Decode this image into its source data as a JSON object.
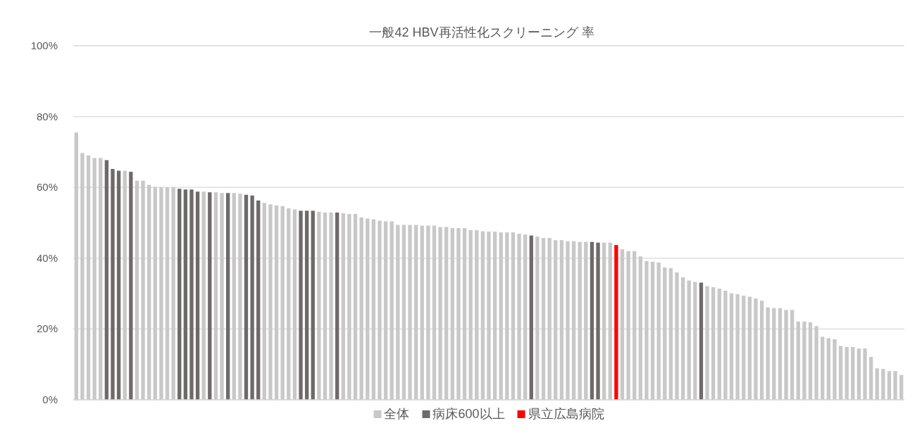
{
  "chart_data": {
    "type": "bar",
    "title": "一般42 HBV再活性化スクリーニング 率",
    "categories": [
      null,
      null,
      null,
      null,
      null,
      null,
      null,
      null,
      null,
      null,
      null,
      null,
      null,
      null,
      null,
      null,
      null,
      null,
      null,
      null,
      null,
      null,
      null,
      null,
      null,
      null,
      null,
      null,
      null,
      null,
      null,
      null,
      null,
      null,
      null,
      null,
      null,
      null,
      null,
      null,
      null,
      null,
      null,
      null,
      null,
      null,
      null,
      null,
      null,
      null,
      null,
      null,
      null,
      null,
      null,
      null,
      null,
      null,
      null,
      null,
      null,
      null,
      null,
      null,
      null,
      null,
      null,
      null,
      null,
      null,
      null,
      null,
      null,
      null,
      null,
      null,
      null,
      null,
      null,
      null,
      null,
      null,
      null,
      null,
      null,
      null,
      null,
      null,
      null,
      null,
      null,
      null,
      null,
      null,
      null,
      null,
      null,
      null,
      null,
      null,
      null,
      null,
      null,
      null,
      null,
      null,
      null,
      null,
      null,
      null,
      null,
      null,
      null,
      null,
      null,
      null,
      null,
      null,
      null,
      null,
      null,
      null,
      null,
      null,
      null,
      null,
      null,
      null,
      null,
      null,
      null,
      null,
      null,
      null,
      null,
      null,
      null
    ],
    "series": [
      {
        "name": "全体",
        "color": "#c8c8c8",
        "values": [
          75.5,
          69.7,
          69.0,
          68.3,
          68.3,
          null,
          null,
          null,
          64.7,
          null,
          61.9,
          61.9,
          60.7,
          60.1,
          60.0,
          60.0,
          60.0,
          null,
          null,
          null,
          null,
          58.8,
          null,
          58.6,
          58.4,
          null,
          58.4,
          58.2,
          null,
          null,
          null,
          55.6,
          55.2,
          54.9,
          54.7,
          54.1,
          53.8,
          null,
          null,
          null,
          53.1,
          52.9,
          52.9,
          null,
          52.7,
          52.5,
          52.5,
          51.5,
          51.2,
          51.0,
          50.6,
          50.4,
          50.4,
          49.4,
          49.4,
          49.4,
          49.4,
          49.2,
          49.2,
          49.2,
          48.8,
          48.8,
          48.5,
          48.5,
          48.5,
          47.9,
          47.9,
          47.6,
          47.5,
          47.5,
          47.3,
          47.3,
          47.3,
          46.9,
          46.7,
          null,
          46.1,
          45.7,
          45.7,
          45.1,
          45.1,
          44.8,
          44.8,
          44.6,
          44.6,
          null,
          null,
          44.4,
          44.4,
          null,
          42.5,
          42.0,
          42.0,
          40.5,
          39.2,
          39.0,
          38.8,
          37.4,
          37.2,
          36.0,
          34.6,
          33.7,
          33.3,
          null,
          32.1,
          31.8,
          31.4,
          30.8,
          30.1,
          29.8,
          29.4,
          29.1,
          28.6,
          28.0,
          26.1,
          25.9,
          25.9,
          25.4,
          25.4,
          22.1,
          22.1,
          21.9,
          20.8,
          17.8,
          17.4,
          17.1,
          15.2,
          14.9,
          14.9,
          14.5,
          14.5,
          12.1,
          8.9,
          8.7,
          8.1,
          8.1,
          7.0
        ]
      },
      {
        "name": "病床600以上",
        "color": "#6e6a6a",
        "values": [
          null,
          null,
          null,
          null,
          null,
          67.7,
          65.2,
          64.7,
          null,
          64.4,
          null,
          null,
          null,
          null,
          null,
          null,
          null,
          59.6,
          59.4,
          59.4,
          58.8,
          null,
          58.6,
          null,
          null,
          58.4,
          null,
          null,
          57.9,
          57.7,
          56.3,
          null,
          null,
          null,
          null,
          null,
          null,
          53.4,
          53.4,
          53.4,
          null,
          null,
          null,
          52.9,
          null,
          null,
          null,
          null,
          null,
          null,
          null,
          null,
          null,
          null,
          null,
          null,
          null,
          null,
          null,
          null,
          null,
          null,
          null,
          null,
          null,
          null,
          null,
          null,
          null,
          null,
          null,
          null,
          null,
          null,
          null,
          46.4,
          null,
          null,
          null,
          null,
          null,
          null,
          null,
          null,
          null,
          44.6,
          44.4,
          null,
          null,
          null,
          null,
          null,
          null,
          null,
          null,
          null,
          null,
          null,
          null,
          null,
          null,
          null,
          null,
          33.1,
          null,
          null,
          null,
          null,
          null,
          null,
          null,
          null,
          null,
          null,
          null,
          null,
          null,
          null,
          null,
          null,
          null,
          null,
          null,
          null,
          null,
          null,
          null,
          null,
          null,
          null,
          null,
          null,
          null,
          null,
          null,
          null,
          null
        ]
      },
      {
        "name": "県立広島病院",
        "color": "#ff0000",
        "values": [
          null,
          null,
          null,
          null,
          null,
          null,
          null,
          null,
          null,
          null,
          null,
          null,
          null,
          null,
          null,
          null,
          null,
          null,
          null,
          null,
          null,
          null,
          null,
          null,
          null,
          null,
          null,
          null,
          null,
          null,
          null,
          null,
          null,
          null,
          null,
          null,
          null,
          null,
          null,
          null,
          null,
          null,
          null,
          null,
          null,
          null,
          null,
          null,
          null,
          null,
          null,
          null,
          null,
          null,
          null,
          null,
          null,
          null,
          null,
          null,
          null,
          null,
          null,
          null,
          null,
          null,
          null,
          null,
          null,
          null,
          null,
          null,
          null,
          null,
          null,
          null,
          null,
          null,
          null,
          null,
          null,
          null,
          null,
          null,
          null,
          null,
          null,
          null,
          null,
          43.7,
          null,
          null,
          null,
          null,
          null,
          null,
          null,
          null,
          null,
          null,
          null,
          null,
          null,
          null,
          null,
          null,
          null,
          null,
          null,
          null,
          null,
          null,
          null,
          null,
          null,
          null,
          null,
          null,
          null,
          null,
          null,
          null,
          null,
          null,
          null,
          null,
          null,
          null,
          null,
          null,
          null,
          null,
          null,
          null,
          null,
          null,
          null
        ]
      }
    ],
    "ylim": [
      0,
      100
    ],
    "yticks": [
      {
        "value": 0,
        "label": "0%"
      },
      {
        "value": 20,
        "label": "20%"
      },
      {
        "value": 40,
        "label": "40%"
      },
      {
        "value": 60,
        "label": "60%"
      },
      {
        "value": 80,
        "label": "80%"
      },
      {
        "value": 100,
        "label": "100%"
      }
    ],
    "grid": "y",
    "legend": "bottom"
  }
}
